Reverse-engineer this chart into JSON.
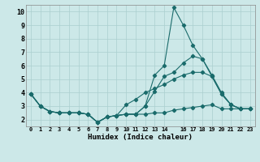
{
  "xlabel": "Humidex (Indice chaleur)",
  "ylabel": "",
  "bg_color": "#cce8e8",
  "grid_color": "#aacfcf",
  "line_color": "#1a6b6b",
  "xlim": [
    -0.5,
    23.5
  ],
  "ylim": [
    1.5,
    10.5
  ],
  "yticks": [
    2,
    3,
    4,
    5,
    6,
    7,
    8,
    9,
    10
  ],
  "xticks": [
    0,
    1,
    2,
    3,
    4,
    5,
    6,
    7,
    8,
    9,
    10,
    11,
    12,
    13,
    14,
    16,
    17,
    18,
    19,
    20,
    21,
    22,
    23
  ],
  "lines": [
    {
      "x": [
        0,
        1,
        2,
        3,
        4,
        5,
        6,
        7,
        8,
        9,
        10,
        11,
        12,
        13,
        14,
        15,
        16,
        17,
        18,
        19,
        20,
        21,
        22,
        23
      ],
      "y": [
        3.9,
        3.0,
        2.6,
        2.5,
        2.5,
        2.5,
        2.4,
        1.8,
        2.2,
        2.3,
        2.4,
        2.4,
        3.0,
        5.3,
        6.0,
        10.3,
        9.0,
        7.5,
        6.5,
        5.3,
        4.0,
        3.1,
        2.8,
        2.8
      ]
    },
    {
      "x": [
        0,
        1,
        2,
        3,
        4,
        5,
        6,
        7,
        8,
        9,
        10,
        11,
        12,
        13,
        14,
        15,
        16,
        17,
        18,
        19,
        20,
        21,
        22,
        23
      ],
      "y": [
        3.9,
        3.0,
        2.6,
        2.5,
        2.5,
        2.5,
        2.4,
        1.8,
        2.2,
        2.3,
        2.4,
        2.4,
        3.0,
        4.1,
        5.2,
        5.5,
        6.2,
        6.7,
        6.5,
        5.2,
        3.9,
        3.1,
        2.8,
        2.8
      ]
    },
    {
      "x": [
        0,
        1,
        2,
        3,
        4,
        5,
        6,
        7,
        8,
        9,
        10,
        11,
        12,
        13,
        14,
        15,
        16,
        17,
        18,
        19,
        20,
        21,
        22,
        23
      ],
      "y": [
        3.9,
        3.0,
        2.6,
        2.5,
        2.5,
        2.5,
        2.4,
        1.8,
        2.2,
        2.3,
        2.4,
        2.4,
        2.4,
        2.5,
        2.5,
        2.7,
        2.8,
        2.9,
        3.0,
        3.1,
        2.8,
        2.8,
        2.8,
        2.8
      ]
    },
    {
      "x": [
        0,
        1,
        2,
        3,
        4,
        5,
        6,
        7,
        8,
        9,
        10,
        11,
        12,
        13,
        14,
        15,
        16,
        17,
        18,
        19,
        20,
        21,
        22,
        23
      ],
      "y": [
        3.9,
        3.0,
        2.6,
        2.5,
        2.5,
        2.5,
        2.4,
        1.8,
        2.2,
        2.3,
        3.1,
        3.5,
        4.0,
        4.3,
        4.6,
        5.0,
        5.3,
        5.5,
        5.5,
        5.2,
        3.9,
        3.1,
        2.8,
        2.8
      ]
    }
  ]
}
